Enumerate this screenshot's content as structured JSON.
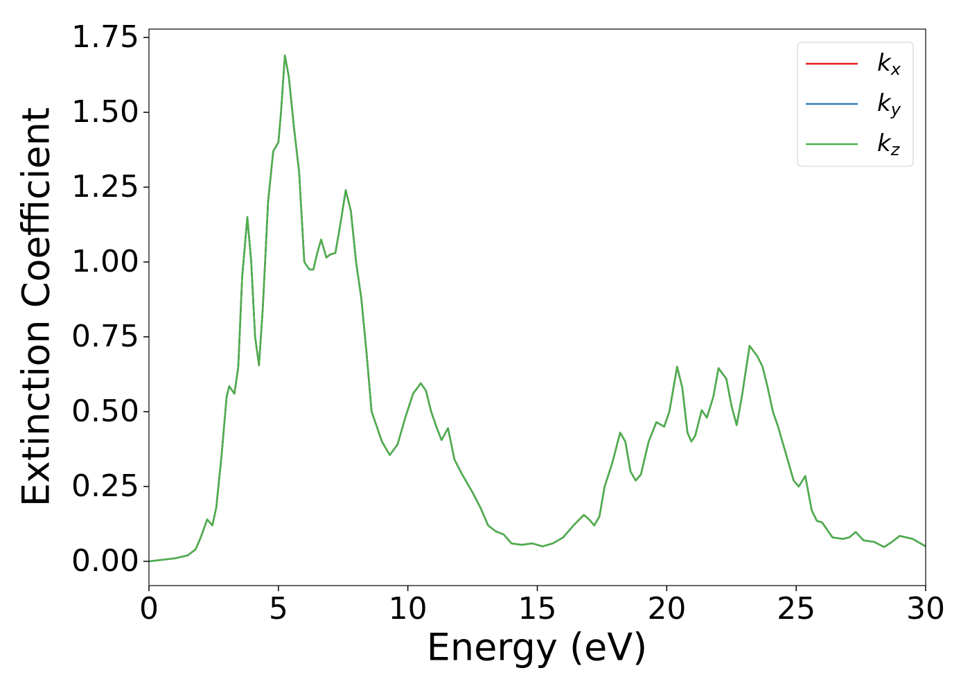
{
  "chart_data": {
    "type": "line",
    "xlabel": "Energy (eV)",
    "ylabel": "Extinction Coefficient",
    "x": [
      0,
      1,
      1.5,
      1.8,
      2.0,
      2.25,
      2.45,
      2.6,
      2.8,
      3.0,
      3.1,
      3.3,
      3.45,
      3.6,
      3.8,
      3.95,
      4.1,
      4.25,
      4.4,
      4.6,
      4.8,
      5.0,
      5.1,
      5.25,
      5.4,
      5.6,
      5.8,
      6.0,
      6.2,
      6.35,
      6.5,
      6.65,
      6.85,
      7.0,
      7.2,
      7.4,
      7.6,
      7.8,
      8.0,
      8.2,
      8.4,
      8.6,
      8.8,
      9.0,
      9.3,
      9.6,
      9.9,
      10.2,
      10.5,
      10.7,
      10.9,
      11.1,
      11.3,
      11.55,
      11.8,
      12.1,
      12.5,
      12.8,
      13.1,
      13.4,
      13.7,
      14.0,
      14.4,
      14.8,
      15.2,
      15.6,
      16.0,
      16.4,
      16.8,
      17.0,
      17.2,
      17.4,
      17.6,
      17.9,
      18.2,
      18.4,
      18.6,
      18.8,
      19.0,
      19.3,
      19.6,
      19.9,
      20.1,
      20.4,
      20.6,
      20.8,
      20.95,
      21.1,
      21.35,
      21.55,
      21.8,
      22.0,
      22.3,
      22.5,
      22.7,
      22.9,
      23.2,
      23.5,
      23.7,
      23.9,
      24.1,
      24.3,
      24.6,
      24.9,
      25.1,
      25.35,
      25.6,
      25.8,
      26.0,
      26.4,
      26.8,
      27.05,
      27.3,
      27.6,
      28.0,
      28.4,
      28.7,
      29.0,
      29.5,
      30.0
    ],
    "series": [
      {
        "name": "kx",
        "color": "#e41a1c",
        "values": [
          0.0,
          0.01,
          0.02,
          0.04,
          0.08,
          0.14,
          0.12,
          0.18,
          0.35,
          0.55,
          0.585,
          0.56,
          0.65,
          0.95,
          1.15,
          1.0,
          0.75,
          0.655,
          0.85,
          1.2,
          1.37,
          1.4,
          1.5,
          1.69,
          1.62,
          1.45,
          1.3,
          1.0,
          0.975,
          0.975,
          1.03,
          1.075,
          1.015,
          1.025,
          1.03,
          1.13,
          1.24,
          1.17,
          1.0,
          0.88,
          0.7,
          0.5,
          0.45,
          0.4,
          0.355,
          0.39,
          0.48,
          0.56,
          0.595,
          0.57,
          0.5,
          0.45,
          0.405,
          0.445,
          0.34,
          0.29,
          0.23,
          0.18,
          0.12,
          0.1,
          0.09,
          0.06,
          0.055,
          0.06,
          0.05,
          0.06,
          0.08,
          0.12,
          0.155,
          0.14,
          0.12,
          0.15,
          0.25,
          0.33,
          0.43,
          0.4,
          0.3,
          0.27,
          0.29,
          0.4,
          0.465,
          0.45,
          0.5,
          0.65,
          0.58,
          0.43,
          0.4,
          0.42,
          0.505,
          0.48,
          0.55,
          0.645,
          0.61,
          0.52,
          0.455,
          0.55,
          0.72,
          0.685,
          0.65,
          0.58,
          0.5,
          0.45,
          0.36,
          0.27,
          0.25,
          0.285,
          0.17,
          0.135,
          0.13,
          0.08,
          0.075,
          0.08,
          0.098,
          0.07,
          0.065,
          0.048,
          0.065,
          0.085,
          0.075,
          0.05
        ]
      },
      {
        "name": "ky",
        "color": "#377eb8",
        "values": [
          0.0,
          0.01,
          0.02,
          0.04,
          0.08,
          0.14,
          0.12,
          0.18,
          0.35,
          0.55,
          0.585,
          0.56,
          0.65,
          0.95,
          1.15,
          1.0,
          0.75,
          0.655,
          0.85,
          1.2,
          1.37,
          1.4,
          1.5,
          1.69,
          1.62,
          1.45,
          1.3,
          1.0,
          0.975,
          0.975,
          1.03,
          1.075,
          1.015,
          1.025,
          1.03,
          1.13,
          1.24,
          1.17,
          1.0,
          0.88,
          0.7,
          0.5,
          0.45,
          0.4,
          0.355,
          0.39,
          0.48,
          0.56,
          0.595,
          0.57,
          0.5,
          0.45,
          0.405,
          0.445,
          0.34,
          0.29,
          0.23,
          0.18,
          0.12,
          0.1,
          0.09,
          0.06,
          0.055,
          0.06,
          0.05,
          0.06,
          0.08,
          0.12,
          0.155,
          0.14,
          0.12,
          0.15,
          0.25,
          0.33,
          0.43,
          0.4,
          0.3,
          0.27,
          0.29,
          0.4,
          0.465,
          0.45,
          0.5,
          0.65,
          0.58,
          0.43,
          0.4,
          0.42,
          0.505,
          0.48,
          0.55,
          0.645,
          0.61,
          0.52,
          0.455,
          0.55,
          0.72,
          0.685,
          0.65,
          0.58,
          0.5,
          0.45,
          0.36,
          0.27,
          0.25,
          0.285,
          0.17,
          0.135,
          0.13,
          0.08,
          0.075,
          0.08,
          0.098,
          0.07,
          0.065,
          0.048,
          0.065,
          0.085,
          0.075,
          0.05
        ]
      },
      {
        "name": "kz",
        "color": "#4daf4a",
        "values": [
          0.0,
          0.01,
          0.02,
          0.04,
          0.08,
          0.14,
          0.12,
          0.18,
          0.35,
          0.55,
          0.585,
          0.56,
          0.65,
          0.95,
          1.15,
          1.0,
          0.75,
          0.655,
          0.85,
          1.2,
          1.37,
          1.4,
          1.5,
          1.69,
          1.62,
          1.45,
          1.3,
          1.0,
          0.975,
          0.975,
          1.03,
          1.075,
          1.015,
          1.025,
          1.03,
          1.13,
          1.24,
          1.17,
          1.0,
          0.88,
          0.7,
          0.5,
          0.45,
          0.4,
          0.355,
          0.39,
          0.48,
          0.56,
          0.595,
          0.57,
          0.5,
          0.45,
          0.405,
          0.445,
          0.34,
          0.29,
          0.23,
          0.18,
          0.12,
          0.1,
          0.09,
          0.06,
          0.055,
          0.06,
          0.05,
          0.06,
          0.08,
          0.12,
          0.155,
          0.14,
          0.12,
          0.15,
          0.25,
          0.33,
          0.43,
          0.4,
          0.3,
          0.27,
          0.29,
          0.4,
          0.465,
          0.45,
          0.5,
          0.65,
          0.58,
          0.43,
          0.4,
          0.42,
          0.505,
          0.48,
          0.55,
          0.645,
          0.61,
          0.52,
          0.455,
          0.55,
          0.72,
          0.685,
          0.65,
          0.58,
          0.5,
          0.45,
          0.36,
          0.27,
          0.25,
          0.285,
          0.17,
          0.135,
          0.13,
          0.08,
          0.075,
          0.08,
          0.098,
          0.07,
          0.065,
          0.048,
          0.065,
          0.085,
          0.075,
          0.05
        ]
      }
    ],
    "xlim": [
      0,
      30
    ],
    "xticks": [
      0,
      5,
      10,
      15,
      20,
      25,
      30
    ],
    "ylim": [
      -0.081,
      1.778
    ],
    "yticks": [
      {
        "value": 0,
        "label": "0.00"
      },
      {
        "value": 0.25,
        "label": "0.25"
      },
      {
        "value": 0.5,
        "label": "0.50"
      },
      {
        "value": 0.75,
        "label": "0.75"
      },
      {
        "value": 1,
        "label": "1.00"
      },
      {
        "value": 1.25,
        "label": "1.25"
      },
      {
        "value": 1.5,
        "label": "1.50"
      },
      {
        "value": 1.75,
        "label": "1.75"
      }
    ],
    "grid": false,
    "legend": "upper right"
  }
}
